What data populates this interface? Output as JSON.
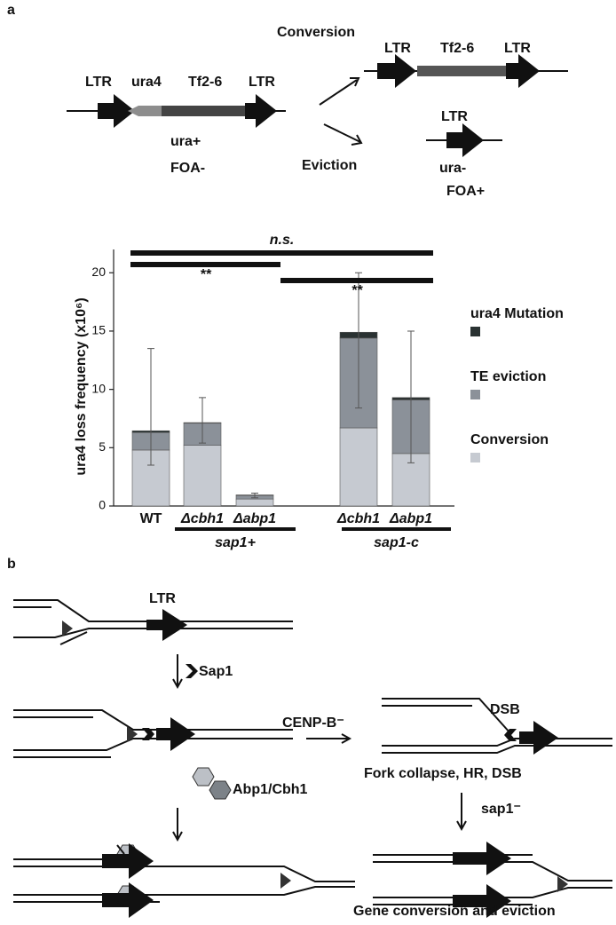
{
  "panel_labels": [
    "a",
    "b"
  ],
  "diagram": {
    "conversion": "Conversion",
    "eviction": "Eviction",
    "ltr": "LTR",
    "ura4": "ura4",
    "tf2": "Tf2-6",
    "ura_plus": "ura+",
    "foa_minus": "FOA-",
    "ura_minus": "ura-",
    "foa_plus": "FOA+",
    "sap1": "Sap1",
    "cenpb": "CENP-B⁻",
    "dsb": "DSB",
    "fork_collapse": "Fork collapse, HR, DSB",
    "abp1": "Abp1/Cbh1",
    "sap1_minus": "sap1⁻",
    "gene_conversion": "Gene conversion and eviction"
  },
  "chart_data": {
    "type": "bar",
    "stacked": true,
    "ylabel": "ura4 loss frequency (x10⁶)",
    "categories": [
      "WT",
      "Δcbh1",
      "Δabp1",
      "Δcbh1",
      "Δabp1"
    ],
    "groups": [
      "sap1+",
      "sap1-c"
    ],
    "series": [
      {
        "name": "Conversion",
        "color": "#c6cad1",
        "values": [
          4.8,
          5.2,
          0.6,
          6.7,
          4.5
        ]
      },
      {
        "name": "TE eviction",
        "color": "#8b9199",
        "values": [
          1.5,
          1.9,
          0.3,
          7.7,
          4.6
        ]
      },
      {
        "name": "ura4 Mutation",
        "color": "#2a3232",
        "values": [
          0.15,
          0.05,
          0.05,
          0.5,
          0.2
        ]
      }
    ],
    "errors": [
      [
        3.5,
        13.5
      ],
      [
        5.4,
        9.3
      ],
      [
        0.7,
        1.1
      ],
      [
        8.4,
        20
      ],
      [
        3.7,
        15
      ]
    ],
    "annotations": [
      "n.s.",
      "**",
      "**"
    ],
    "ylim": [
      0,
      22
    ],
    "yticks": [
      0,
      5,
      10,
      15,
      20
    ]
  }
}
